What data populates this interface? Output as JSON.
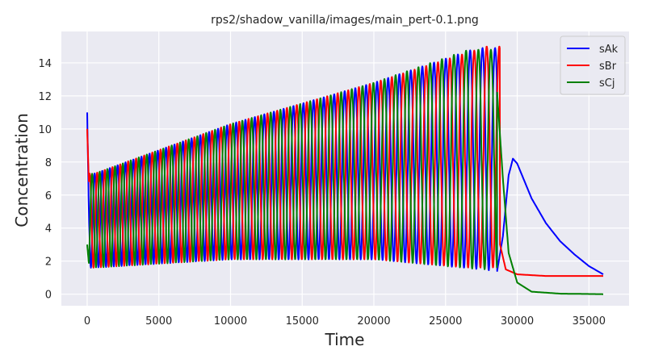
{
  "chart_data": {
    "type": "line",
    "title": "rps2/shadow_vanilla/images/main_pert-0.1.png",
    "xlabel": "Time",
    "ylabel": "Concentration",
    "xlim": [
      -1800,
      37800
    ],
    "ylim": [
      -0.7,
      15.9
    ],
    "xticks": [
      0,
      5000,
      10000,
      15000,
      20000,
      25000,
      30000,
      35000
    ],
    "yticks": [
      0,
      2,
      4,
      6,
      8,
      10,
      12,
      14
    ],
    "grid": true,
    "legend_position": "top-right",
    "background": "#eaeaf2",
    "series": [
      {
        "name": "sAk",
        "color": "#0000ff",
        "initial_value": 11.0,
        "oscillation": {
          "phase_offset": 0.0,
          "peaks": [
            [
              500,
              7.3
            ],
            [
              10000,
              10.3
            ],
            [
              20000,
              12.8
            ],
            [
              27200,
              14.9
            ]
          ],
          "troughs": [
            [
              500,
              1.6
            ],
            [
              10000,
              2.1
            ],
            [
              20000,
              2.1
            ],
            [
              28600,
              1.4
            ]
          ]
        },
        "tail": [
          [
            28600,
            1.4
          ],
          [
            29000,
            3.5
          ],
          [
            29400,
            7.2
          ],
          [
            29700,
            8.2
          ],
          [
            30000,
            7.9
          ],
          [
            31000,
            5.8
          ],
          [
            32000,
            4.3
          ],
          [
            33000,
            3.2
          ],
          [
            34000,
            2.4
          ],
          [
            35000,
            1.7
          ],
          [
            36000,
            1.2
          ]
        ]
      },
      {
        "name": "sBr",
        "color": "#ff0000",
        "initial_value": 10.0,
        "oscillation": {
          "phase_offset": 0.333,
          "peaks": [
            [
              500,
              7.3
            ],
            [
              10000,
              10.3
            ],
            [
              20000,
              12.8
            ],
            [
              27900,
              15.0
            ]
          ],
          "troughs": [
            [
              500,
              1.6
            ],
            [
              10000,
              2.1
            ],
            [
              20000,
              2.1
            ],
            [
              26500,
              1.6
            ]
          ]
        },
        "tail": [
          [
            28800,
            3.0
          ],
          [
            29200,
            1.5
          ],
          [
            30000,
            1.2
          ],
          [
            32000,
            1.1
          ],
          [
            36000,
            1.1
          ]
        ]
      },
      {
        "name": "sCj",
        "color": "#008000",
        "initial_value": 3.0,
        "oscillation": {
          "phase_offset": 0.667,
          "peaks": [
            [
              500,
              7.3
            ],
            [
              10000,
              10.3
            ],
            [
              20000,
              12.8
            ],
            [
              26600,
              14.8
            ]
          ],
          "troughs": [
            [
              500,
              1.6
            ],
            [
              10000,
              2.1
            ],
            [
              20000,
              2.1
            ],
            [
              27400,
              1.5
            ]
          ]
        },
        "tail": [
          [
            28600,
            12.2
          ],
          [
            29000,
            7.0
          ],
          [
            29400,
            2.5
          ],
          [
            30000,
            0.7
          ],
          [
            31000,
            0.15
          ],
          [
            33000,
            0.03
          ],
          [
            36000,
            0.0
          ]
        ]
      }
    ],
    "period_growth": {
      "start_period": 520,
      "end_period": 830,
      "cycles": 42
    }
  }
}
